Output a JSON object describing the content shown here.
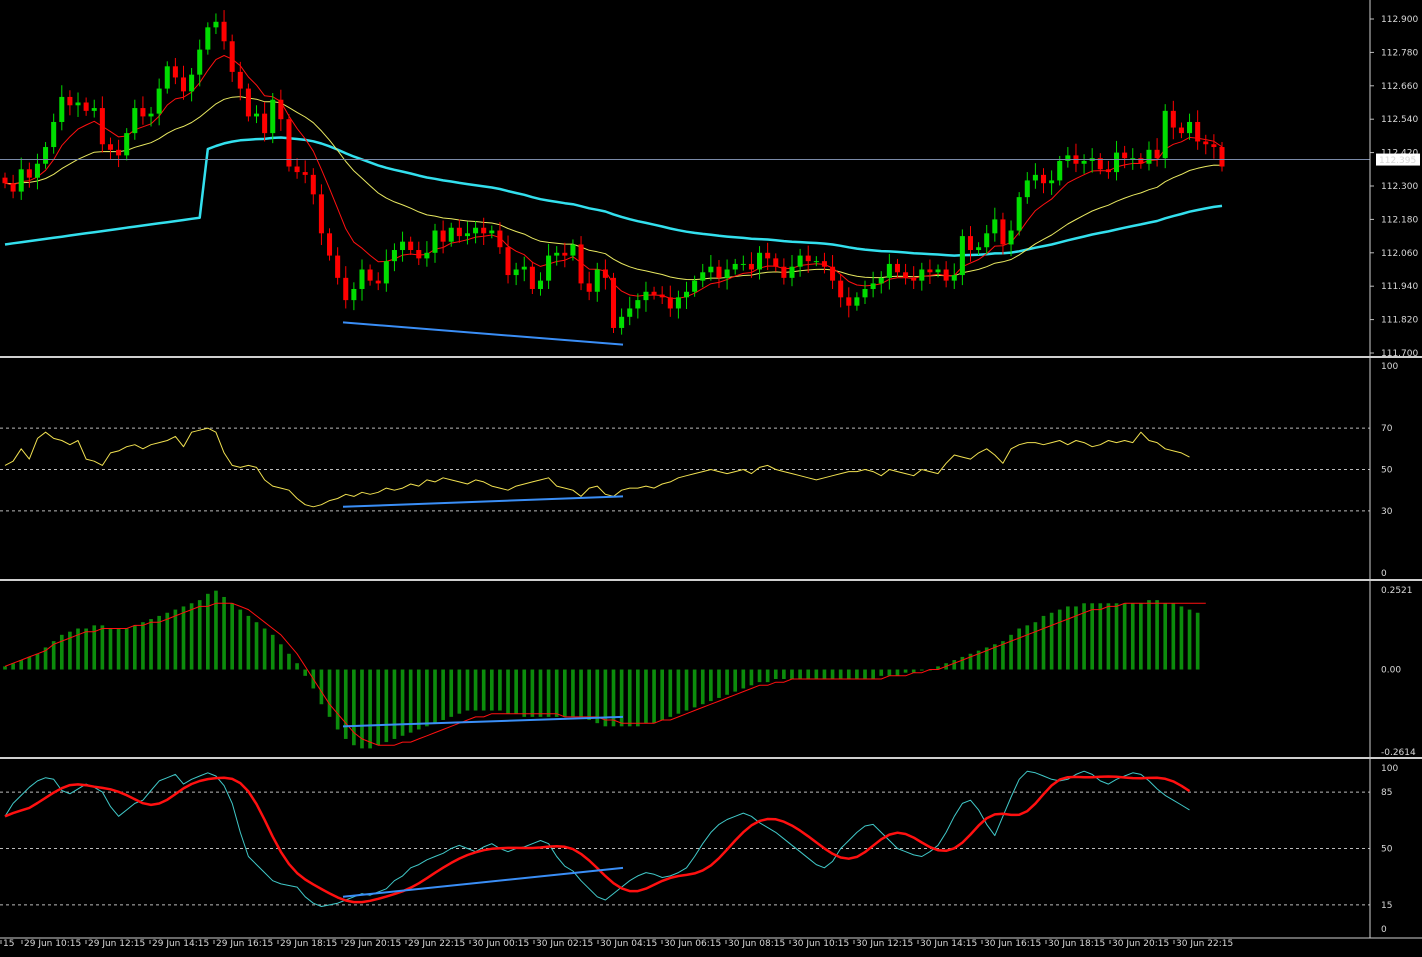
{
  "colors": {
    "background": "#000000",
    "axis_text": "#d8d8d8",
    "bull_candle": "#00dd00",
    "bear_candle": "#ff0000",
    "ma_fast": "#ff1010",
    "ma_mid": "#e8e860",
    "ma_slow": "#33e0ee",
    "trendline": "#3a8ef6",
    "histogram": "#0c8c0c",
    "signal_line": "#ff1010",
    "stoch_main": "#40c8c8",
    "stoch_signal": "#ff1010",
    "rsi_line": "#f0e050",
    "bid_line": "#7a8aa8"
  },
  "price_panel": {
    "current_price": "112.395",
    "axis_labels": [
      "112.900",
      "112.780",
      "112.660",
      "112.540",
      "112.420",
      "112.300",
      "112.180",
      "112.060",
      "111.940",
      "111.820",
      "111.700"
    ]
  },
  "rsi_panel": {
    "axis_labels": [
      "100",
      "70",
      "50",
      "30",
      "0"
    ]
  },
  "macd_panel": {
    "axis_labels": [
      "0.2521",
      "0.00",
      "-0.2614"
    ]
  },
  "stoch_panel": {
    "axis_labels": [
      "100",
      "85",
      "50",
      "15",
      "0"
    ]
  },
  "time_axis": {
    "labels": [
      "15",
      "29 Jun 10:15",
      "29 Jun 12:15",
      "29 Jun 14:15",
      "29 Jun 16:15",
      "29 Jun 18:15",
      "29 Jun 20:15",
      "29 Jun 22:15",
      "30 Jun 00:15",
      "30 Jun 02:15",
      "30 Jun 04:15",
      "30 Jun 06:15",
      "30 Jun 08:15",
      "30 Jun 10:15",
      "30 Jun 12:15",
      "30 Jun 14:15",
      "30 Jun 16:15",
      "30 Jun 18:15",
      "30 Jun 20:15",
      "30 Jun 22:15"
    ]
  },
  "chart_data": {
    "type": "candlestick",
    "price_axis_range": [
      111.7,
      112.9
    ],
    "current_price": 112.395,
    "closes": [
      112.31,
      112.28,
      112.36,
      112.33,
      112.38,
      112.44,
      112.53,
      112.62,
      112.59,
      112.6,
      112.57,
      112.58,
      112.45,
      112.43,
      112.41,
      112.49,
      112.58,
      112.55,
      112.56,
      112.65,
      112.73,
      112.69,
      112.64,
      112.7,
      112.79,
      112.87,
      112.89,
      112.82,
      112.71,
      112.65,
      112.55,
      112.56,
      112.49,
      112.61,
      112.54,
      112.37,
      112.35,
      112.34,
      112.27,
      112.13,
      112.05,
      111.97,
      111.89,
      111.93,
      112.0,
      111.96,
      111.95,
      112.03,
      112.07,
      112.1,
      112.07,
      112.04,
      112.06,
      112.14,
      112.1,
      112.15,
      112.12,
      112.13,
      112.15,
      112.13,
      112.14,
      112.08,
      111.98,
      112.0,
      112.01,
      111.93,
      111.96,
      112.05,
      112.06,
      112.05,
      112.09,
      111.95,
      111.92,
      112.0,
      111.97,
      111.79,
      111.83,
      111.86,
      111.89,
      111.92,
      111.91,
      111.9,
      111.86,
      111.9,
      111.92,
      111.96,
      111.99,
      112.01,
      111.97,
      112.0,
      112.02,
      112.02,
      112.0,
      112.06,
      112.04,
      112.01,
      111.97,
      112.01,
      112.05,
      112.03,
      112.03,
      112.01,
      111.96,
      111.9,
      111.87,
      111.9,
      111.93,
      111.95,
      111.97,
      112.02,
      111.99,
      111.97,
      111.96,
      112.0,
      111.99,
      112.0,
      111.96,
      111.98,
      112.12,
      112.07,
      112.08,
      112.13,
      112.18,
      112.09,
      112.14,
      112.26,
      112.32,
      112.34,
      112.31,
      112.32,
      112.39,
      112.41,
      112.38,
      112.39,
      112.4,
      112.36,
      112.35,
      112.42,
      112.4,
      112.4,
      112.38,
      112.43,
      112.4,
      112.57,
      112.51,
      112.49,
      112.53,
      112.46,
      112.45,
      112.44,
      112.37
    ],
    "trendline_price": {
      "from": 111.81,
      "to": 111.73
    },
    "rsi": {
      "range": [
        0,
        100
      ],
      "levels": [
        70,
        50,
        30
      ],
      "values": [
        52,
        54,
        60,
        55,
        65,
        68,
        65,
        64,
        62,
        64,
        55,
        54,
        52,
        58,
        59,
        61,
        62,
        60,
        62,
        63,
        64,
        66,
        61,
        68,
        69,
        70,
        68,
        58,
        52,
        51,
        52,
        51,
        45,
        42,
        41,
        40,
        36,
        33,
        32,
        33,
        35,
        36,
        38,
        37,
        39,
        38,
        39,
        41,
        40,
        41,
        43,
        42,
        45,
        44,
        46,
        45,
        44,
        43,
        45,
        44,
        42,
        41,
        40,
        42,
        43,
        44,
        45,
        46,
        42,
        41,
        40,
        37,
        41,
        42,
        38,
        37,
        40,
        41,
        41,
        42,
        41,
        43,
        44,
        46,
        47,
        48,
        49,
        50,
        49,
        48,
        49,
        50,
        48,
        51,
        52,
        50,
        49,
        48,
        47,
        46,
        45,
        46,
        47,
        48,
        49,
        49,
        50,
        49,
        47,
        50,
        49,
        48,
        47,
        50,
        49,
        48,
        53,
        57,
        56,
        55,
        58,
        60,
        57,
        53,
        60,
        62,
        63,
        63,
        62,
        63,
        64,
        62,
        64,
        63,
        61,
        62,
        64,
        63,
        64,
        63,
        68,
        64,
        63,
        60,
        59,
        58,
        56
      ]
    },
    "macd": {
      "range": [
        -0.2614,
        0.2521
      ],
      "histogram": [
        0.01,
        0.02,
        0.03,
        0.04,
        0.05,
        0.07,
        0.09,
        0.11,
        0.12,
        0.13,
        0.13,
        0.14,
        0.14,
        0.13,
        0.13,
        0.13,
        0.14,
        0.15,
        0.16,
        0.17,
        0.18,
        0.19,
        0.2,
        0.21,
        0.22,
        0.24,
        0.25,
        0.23,
        0.21,
        0.19,
        0.17,
        0.15,
        0.13,
        0.11,
        0.08,
        0.05,
        0.02,
        -0.02,
        -0.06,
        -0.11,
        -0.15,
        -0.19,
        -0.22,
        -0.24,
        -0.25,
        -0.25,
        -0.24,
        -0.23,
        -0.22,
        -0.21,
        -0.2,
        -0.19,
        -0.18,
        -0.17,
        -0.16,
        -0.15,
        -0.14,
        -0.13,
        -0.13,
        -0.13,
        -0.13,
        -0.13,
        -0.14,
        -0.14,
        -0.15,
        -0.15,
        -0.15,
        -0.15,
        -0.15,
        -0.15,
        -0.15,
        -0.15,
        -0.16,
        -0.17,
        -0.18,
        -0.18,
        -0.18,
        -0.18,
        -0.18,
        -0.17,
        -0.17,
        -0.16,
        -0.15,
        -0.14,
        -0.13,
        -0.12,
        -0.11,
        -0.1,
        -0.09,
        -0.08,
        -0.07,
        -0.06,
        -0.05,
        -0.04,
        -0.04,
        -0.03,
        -0.03,
        -0.03,
        -0.03,
        -0.03,
        -0.03,
        -0.03,
        -0.03,
        -0.03,
        -0.03,
        -0.03,
        -0.03,
        -0.03,
        -0.02,
        -0.02,
        -0.02,
        -0.01,
        -0.01,
        0.0,
        0.0,
        0.01,
        0.02,
        0.03,
        0.04,
        0.05,
        0.06,
        0.07,
        0.08,
        0.09,
        0.11,
        0.13,
        0.14,
        0.15,
        0.17,
        0.18,
        0.19,
        0.2,
        0.2,
        0.21,
        0.21,
        0.21,
        0.21,
        0.21,
        0.21,
        0.21,
        0.21,
        0.22,
        0.22,
        0.21,
        0.21,
        0.2,
        0.19,
        0.18
      ],
      "signal": [
        0.01,
        0.02,
        0.03,
        0.04,
        0.05,
        0.06,
        0.08,
        0.09,
        0.1,
        0.11,
        0.12,
        0.12,
        0.13,
        0.13,
        0.13,
        0.13,
        0.14,
        0.14,
        0.15,
        0.15,
        0.16,
        0.17,
        0.18,
        0.19,
        0.2,
        0.2,
        0.21,
        0.21,
        0.21,
        0.2,
        0.19,
        0.17,
        0.15,
        0.13,
        0.11,
        0.08,
        0.05,
        0.01,
        -0.03,
        -0.07,
        -0.11,
        -0.14,
        -0.17,
        -0.2,
        -0.22,
        -0.23,
        -0.24,
        -0.24,
        -0.24,
        -0.23,
        -0.23,
        -0.22,
        -0.21,
        -0.2,
        -0.19,
        -0.18,
        -0.17,
        -0.16,
        -0.15,
        -0.15,
        -0.14,
        -0.14,
        -0.14,
        -0.14,
        -0.14,
        -0.14,
        -0.14,
        -0.14,
        -0.14,
        -0.15,
        -0.15,
        -0.15,
        -0.15,
        -0.15,
        -0.16,
        -0.16,
        -0.17,
        -0.17,
        -0.17,
        -0.17,
        -0.17,
        -0.16,
        -0.16,
        -0.15,
        -0.14,
        -0.13,
        -0.12,
        -0.11,
        -0.1,
        -0.09,
        -0.08,
        -0.07,
        -0.06,
        -0.05,
        -0.05,
        -0.04,
        -0.04,
        -0.03,
        -0.03,
        -0.03,
        -0.03,
        -0.03,
        -0.03,
        -0.03,
        -0.03,
        -0.03,
        -0.03,
        -0.03,
        -0.03,
        -0.02,
        -0.02,
        -0.02,
        -0.01,
        -0.01,
        0.0,
        0.0,
        0.01,
        0.02,
        0.03,
        0.04,
        0.05,
        0.06,
        0.07,
        0.08,
        0.09,
        0.1,
        0.11,
        0.12,
        0.13,
        0.14,
        0.15,
        0.16,
        0.17,
        0.18,
        0.19,
        0.19,
        0.2,
        0.2,
        0.21,
        0.21,
        0.21,
        0.21,
        0.21,
        0.21,
        0.21,
        0.21,
        0.21,
        0.21,
        0.21
      ]
    },
    "stochastic": {
      "range": [
        0,
        100
      ],
      "levels": [
        85,
        50,
        15
      ],
      "main": [
        70,
        78,
        83,
        88,
        92,
        94,
        93,
        86,
        84,
        87,
        90,
        88,
        85,
        76,
        70,
        74,
        78,
        80,
        86,
        92,
        94,
        96,
        90,
        93,
        95,
        97,
        95,
        89,
        78,
        60,
        45,
        40,
        35,
        30,
        28,
        27,
        26,
        20,
        16,
        14,
        15,
        16,
        18,
        20,
        22,
        21,
        23,
        25,
        30,
        33,
        38,
        40,
        43,
        45,
        47,
        50,
        52,
        50,
        48,
        51,
        53,
        50,
        48,
        50,
        51,
        53,
        55,
        53,
        45,
        39,
        36,
        30,
        25,
        20,
        18,
        22,
        26,
        30,
        33,
        35,
        34,
        32,
        33,
        35,
        38,
        45,
        53,
        60,
        65,
        68,
        70,
        72,
        70,
        66,
        63,
        60,
        56,
        52,
        48,
        44,
        40,
        38,
        42,
        50,
        55,
        60,
        64,
        65,
        60,
        55,
        50,
        48,
        46,
        45,
        48,
        52,
        60,
        70,
        78,
        80,
        74,
        65,
        58,
        70,
        82,
        93,
        98,
        97,
        95,
        93,
        92,
        93,
        96,
        98,
        96,
        92,
        90,
        93,
        95,
        97,
        96,
        92,
        87,
        83,
        80,
        77,
        74
      ]
    }
  }
}
